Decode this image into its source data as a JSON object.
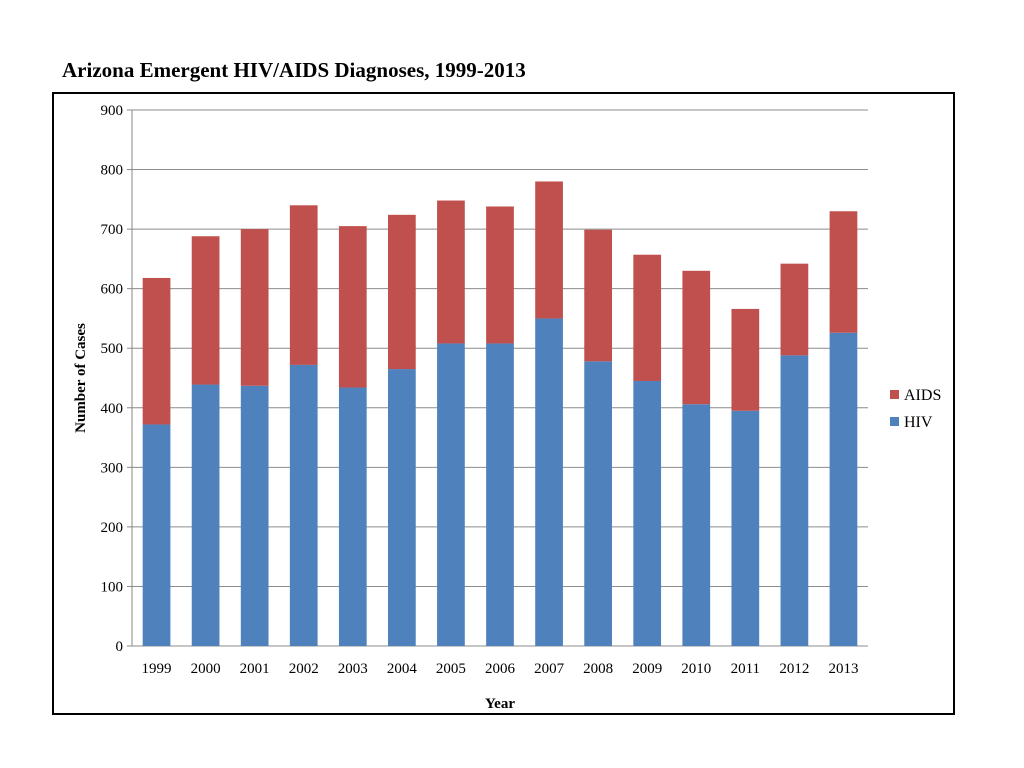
{
  "page": {
    "title": "Arizona Emergent HIV/AIDS Diagnoses, 1999-2013"
  },
  "chart_data": {
    "type": "bar",
    "stacked": true,
    "title": "Arizona Emergent HIV/AIDS Diagnoses, 1999-2013",
    "xlabel": "Year",
    "ylabel": "Number of Cases",
    "ylim": [
      0,
      900
    ],
    "yticks": [
      0,
      100,
      200,
      300,
      400,
      500,
      600,
      700,
      800,
      900
    ],
    "grid": true,
    "legend_position": "right",
    "categories": [
      "1999",
      "2000",
      "2001",
      "2002",
      "2003",
      "2004",
      "2005",
      "2006",
      "2007",
      "2008",
      "2009",
      "2010",
      "2011",
      "2012",
      "2013"
    ],
    "series": [
      {
        "name": "HIV",
        "color": "#4F81BD",
        "values": [
          372,
          439,
          437,
          472,
          434,
          465,
          508,
          508,
          550,
          478,
          445,
          406,
          395,
          488,
          526
        ]
      },
      {
        "name": "AIDS",
        "color": "#C0504D",
        "values": [
          246,
          249,
          263,
          268,
          271,
          259,
          240,
          230,
          230,
          221,
          212,
          224,
          171,
          154,
          204
        ]
      }
    ],
    "legend_order": [
      "AIDS",
      "HIV"
    ]
  }
}
